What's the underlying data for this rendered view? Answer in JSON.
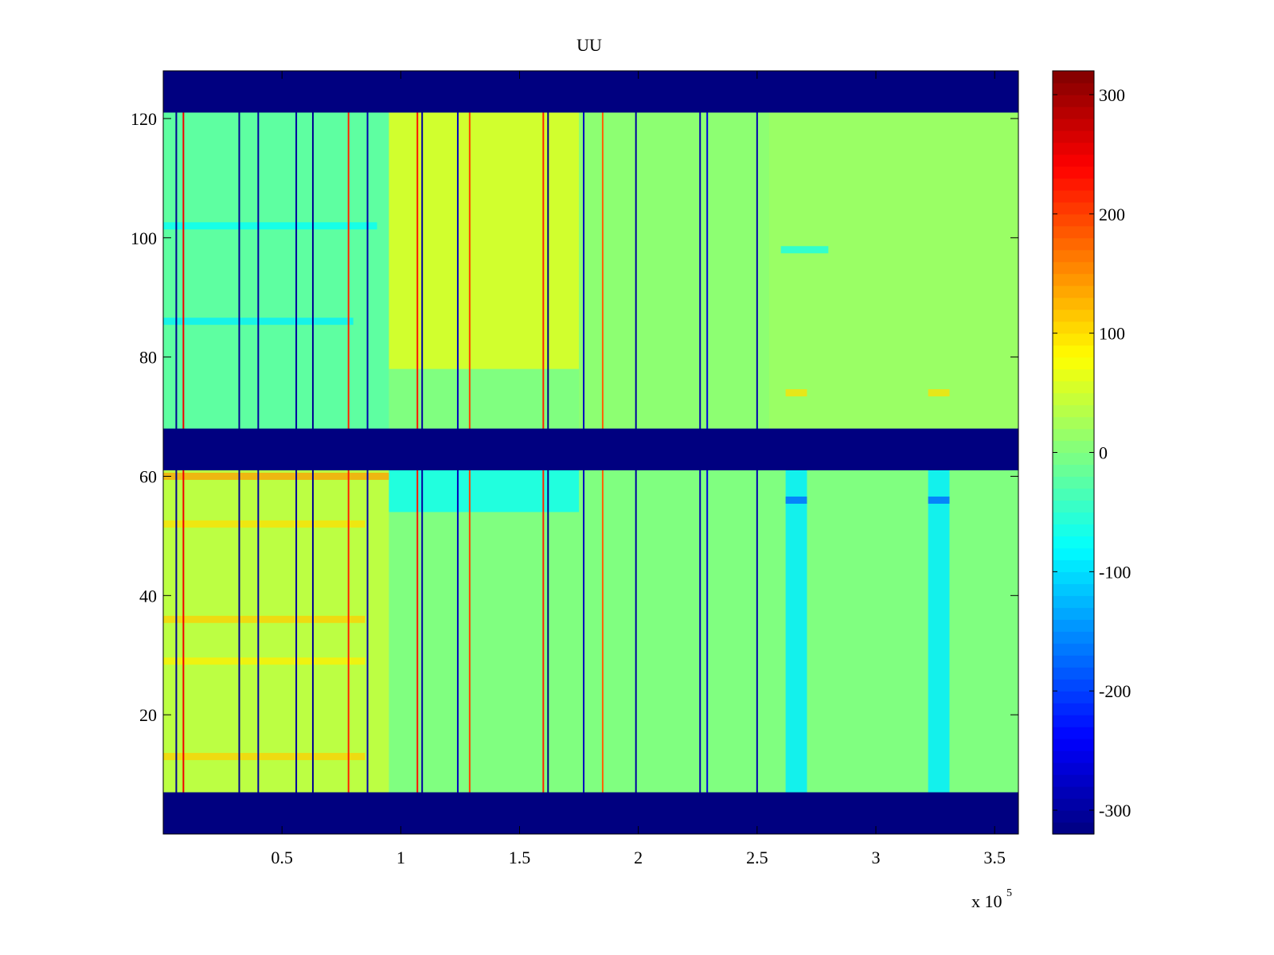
{
  "chart_data": {
    "type": "heatmap",
    "title": "UU",
    "xlabel": "",
    "ylabel": "",
    "x_exponent_label": "x 10",
    "x_exponent_power": "5",
    "xlim": [
      0,
      3.6
    ],
    "ylim": [
      0,
      128
    ],
    "x_ticks": [
      0.5,
      1,
      1.5,
      2,
      2.5,
      3,
      3.5
    ],
    "x_tick_labels": [
      "0.5",
      "1",
      "1.5",
      "2",
      "2.5",
      "3",
      "3.5"
    ],
    "y_ticks": [
      20,
      40,
      60,
      80,
      100,
      120
    ],
    "y_tick_labels": [
      "20",
      "40",
      "60",
      "80",
      "100",
      "120"
    ],
    "colorbar": {
      "colormap": "jet",
      "clim": [
        -320,
        320
      ],
      "ticks": [
        -300,
        -200,
        -100,
        0,
        100,
        200,
        300
      ],
      "tick_labels": [
        "-300",
        "-200",
        "-100",
        "0",
        "100",
        "200",
        "300"
      ]
    },
    "masked_value": -320,
    "masked_row_bands": [
      [
        0,
        7
      ],
      [
        61,
        68
      ],
      [
        121,
        128
      ]
    ],
    "background_value": 0,
    "regions": [
      {
        "x": [
          0.0,
          0.95
        ],
        "y": [
          7,
          61
        ],
        "value": 45
      },
      {
        "x": [
          0.95,
          1.75
        ],
        "y": [
          54,
          61
        ],
        "value": -70
      },
      {
        "x": [
          0.95,
          1.75
        ],
        "y": [
          78,
          121
        ],
        "value": 60
      },
      {
        "x": [
          0.0,
          0.95
        ],
        "y": [
          68,
          121
        ],
        "value": -25
      },
      {
        "x": [
          1.75,
          2.55
        ],
        "y": [
          68,
          121
        ],
        "value": 10
      },
      {
        "x": [
          2.55,
          3.6
        ],
        "y": [
          68,
          121
        ],
        "value": 20
      },
      {
        "x": [
          2.62,
          2.71
        ],
        "y": [
          7,
          61
        ],
        "value": -90
      },
      {
        "x": [
          3.22,
          3.31
        ],
        "y": [
          7,
          61
        ],
        "value": -90
      }
    ],
    "horizontal_streaks": [
      {
        "y": 13,
        "x": [
          0.0,
          0.85
        ],
        "value": 110
      },
      {
        "y": 29,
        "x": [
          0.0,
          0.85
        ],
        "value": 90
      },
      {
        "y": 36,
        "x": [
          0.0,
          0.85
        ],
        "value": 110
      },
      {
        "y": 52,
        "x": [
          0.0,
          0.85
        ],
        "value": 100
      },
      {
        "y": 60,
        "x": [
          0.0,
          0.95
        ],
        "value": 140
      },
      {
        "y": 56,
        "x": [
          2.62,
          2.71
        ],
        "value": -180
      },
      {
        "y": 56,
        "x": [
          3.22,
          3.31
        ],
        "value": -180
      },
      {
        "y": 86,
        "x": [
          0.0,
          0.8
        ],
        "value": -90
      },
      {
        "y": 102,
        "x": [
          0.0,
          0.9
        ],
        "value": -80
      },
      {
        "y": 98,
        "x": [
          2.6,
          2.8
        ],
        "value": -70
      },
      {
        "y": 74,
        "x": [
          2.62,
          2.71
        ],
        "value": 100
      },
      {
        "y": 74,
        "x": [
          3.22,
          3.31
        ],
        "value": 100
      }
    ],
    "vertical_lines": [
      {
        "x": 0.055,
        "value": -310
      },
      {
        "x": 0.085,
        "value": 250
      },
      {
        "x": 0.32,
        "value": -310
      },
      {
        "x": 0.4,
        "value": -300
      },
      {
        "x": 0.56,
        "value": -300
      },
      {
        "x": 0.63,
        "value": -310
      },
      {
        "x": 0.78,
        "value": 220
      },
      {
        "x": 0.86,
        "value": -290
      },
      {
        "x": 1.07,
        "value": 230
      },
      {
        "x": 1.09,
        "value": -300
      },
      {
        "x": 1.24,
        "value": -280
      },
      {
        "x": 1.29,
        "value": 200
      },
      {
        "x": 1.6,
        "value": 220
      },
      {
        "x": 1.62,
        "value": -310
      },
      {
        "x": 1.77,
        "value": -280
      },
      {
        "x": 1.85,
        "value": 180
      },
      {
        "x": 1.99,
        "value": -300
      },
      {
        "x": 2.26,
        "value": -290
      },
      {
        "x": 2.29,
        "value": -260
      },
      {
        "x": 2.5,
        "value": -290
      }
    ]
  }
}
